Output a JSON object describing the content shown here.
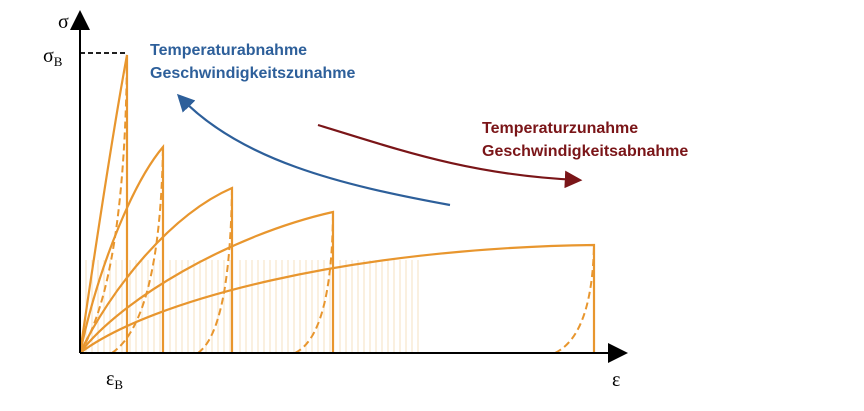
{
  "axes": {
    "y_label": "σ",
    "y_mark": {
      "symbol": "σ",
      "subscript": "B"
    },
    "x_label": "ε",
    "x_mark": {
      "symbol": "ε",
      "subscript": "B"
    }
  },
  "annotations": [
    {
      "lines": [
        "Temperaturabnahme",
        "Geschwindigkeitszunahme"
      ]
    },
    {
      "lines": [
        "Temperaturzunahme",
        "Geschwindigkeitsabnahme"
      ]
    }
  ]
}
